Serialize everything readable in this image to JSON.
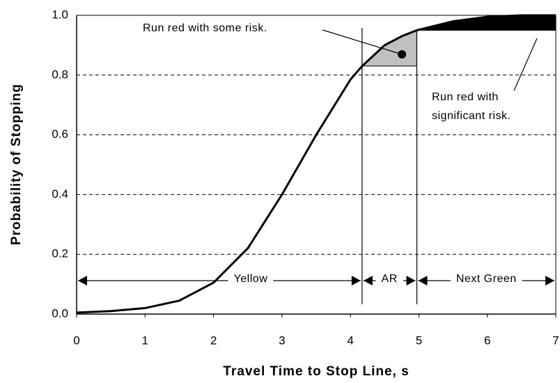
{
  "chart_data": {
    "type": "line",
    "x_label": "Travel Time to Stop Line, s",
    "y_label": "Probability of Stopping",
    "x": [
      0,
      0.5,
      1,
      1.5,
      2,
      2.5,
      3,
      3.5,
      4,
      4.17,
      4.5,
      4.75,
      4.97,
      5.5,
      6,
      6.5,
      7
    ],
    "values": [
      0.005,
      0.01,
      0.02,
      0.045,
      0.105,
      0.22,
      0.4,
      0.6,
      0.785,
      0.83,
      0.9,
      0.93,
      0.95,
      0.98,
      0.995,
      1,
      1
    ],
    "color": "#000000",
    "xlim": [
      0,
      7
    ],
    "xticks": [
      0,
      1,
      2,
      3,
      4,
      5,
      6,
      7
    ],
    "ylim": [
      0,
      1
    ],
    "yticks": [
      {
        "value": 0,
        "label": "0.0"
      },
      {
        "value": 0.2,
        "label": "0.2"
      },
      {
        "value": 0.4,
        "label": "0.4"
      },
      {
        "value": 0.6,
        "label": "0.6"
      },
      {
        "value": 0.8,
        "label": "0.8"
      },
      {
        "value": 1,
        "label": "1.0"
      }
    ],
    "grid": true,
    "phases": [
      {
        "label": "Yellow",
        "start": 0,
        "end": 4.17
      },
      {
        "label": "AR",
        "start": 4.17,
        "end": 4.97,
        "color": "#c0c0c0"
      },
      {
        "label": "Next Green",
        "start": 4.97,
        "end": 7,
        "color": "#000000"
      }
    ],
    "annotations": [
      {
        "lines": [
          "Run red with some risk."
        ]
      },
      {
        "lines": [
          "Run red with",
          "significant risk."
        ]
      }
    ]
  }
}
